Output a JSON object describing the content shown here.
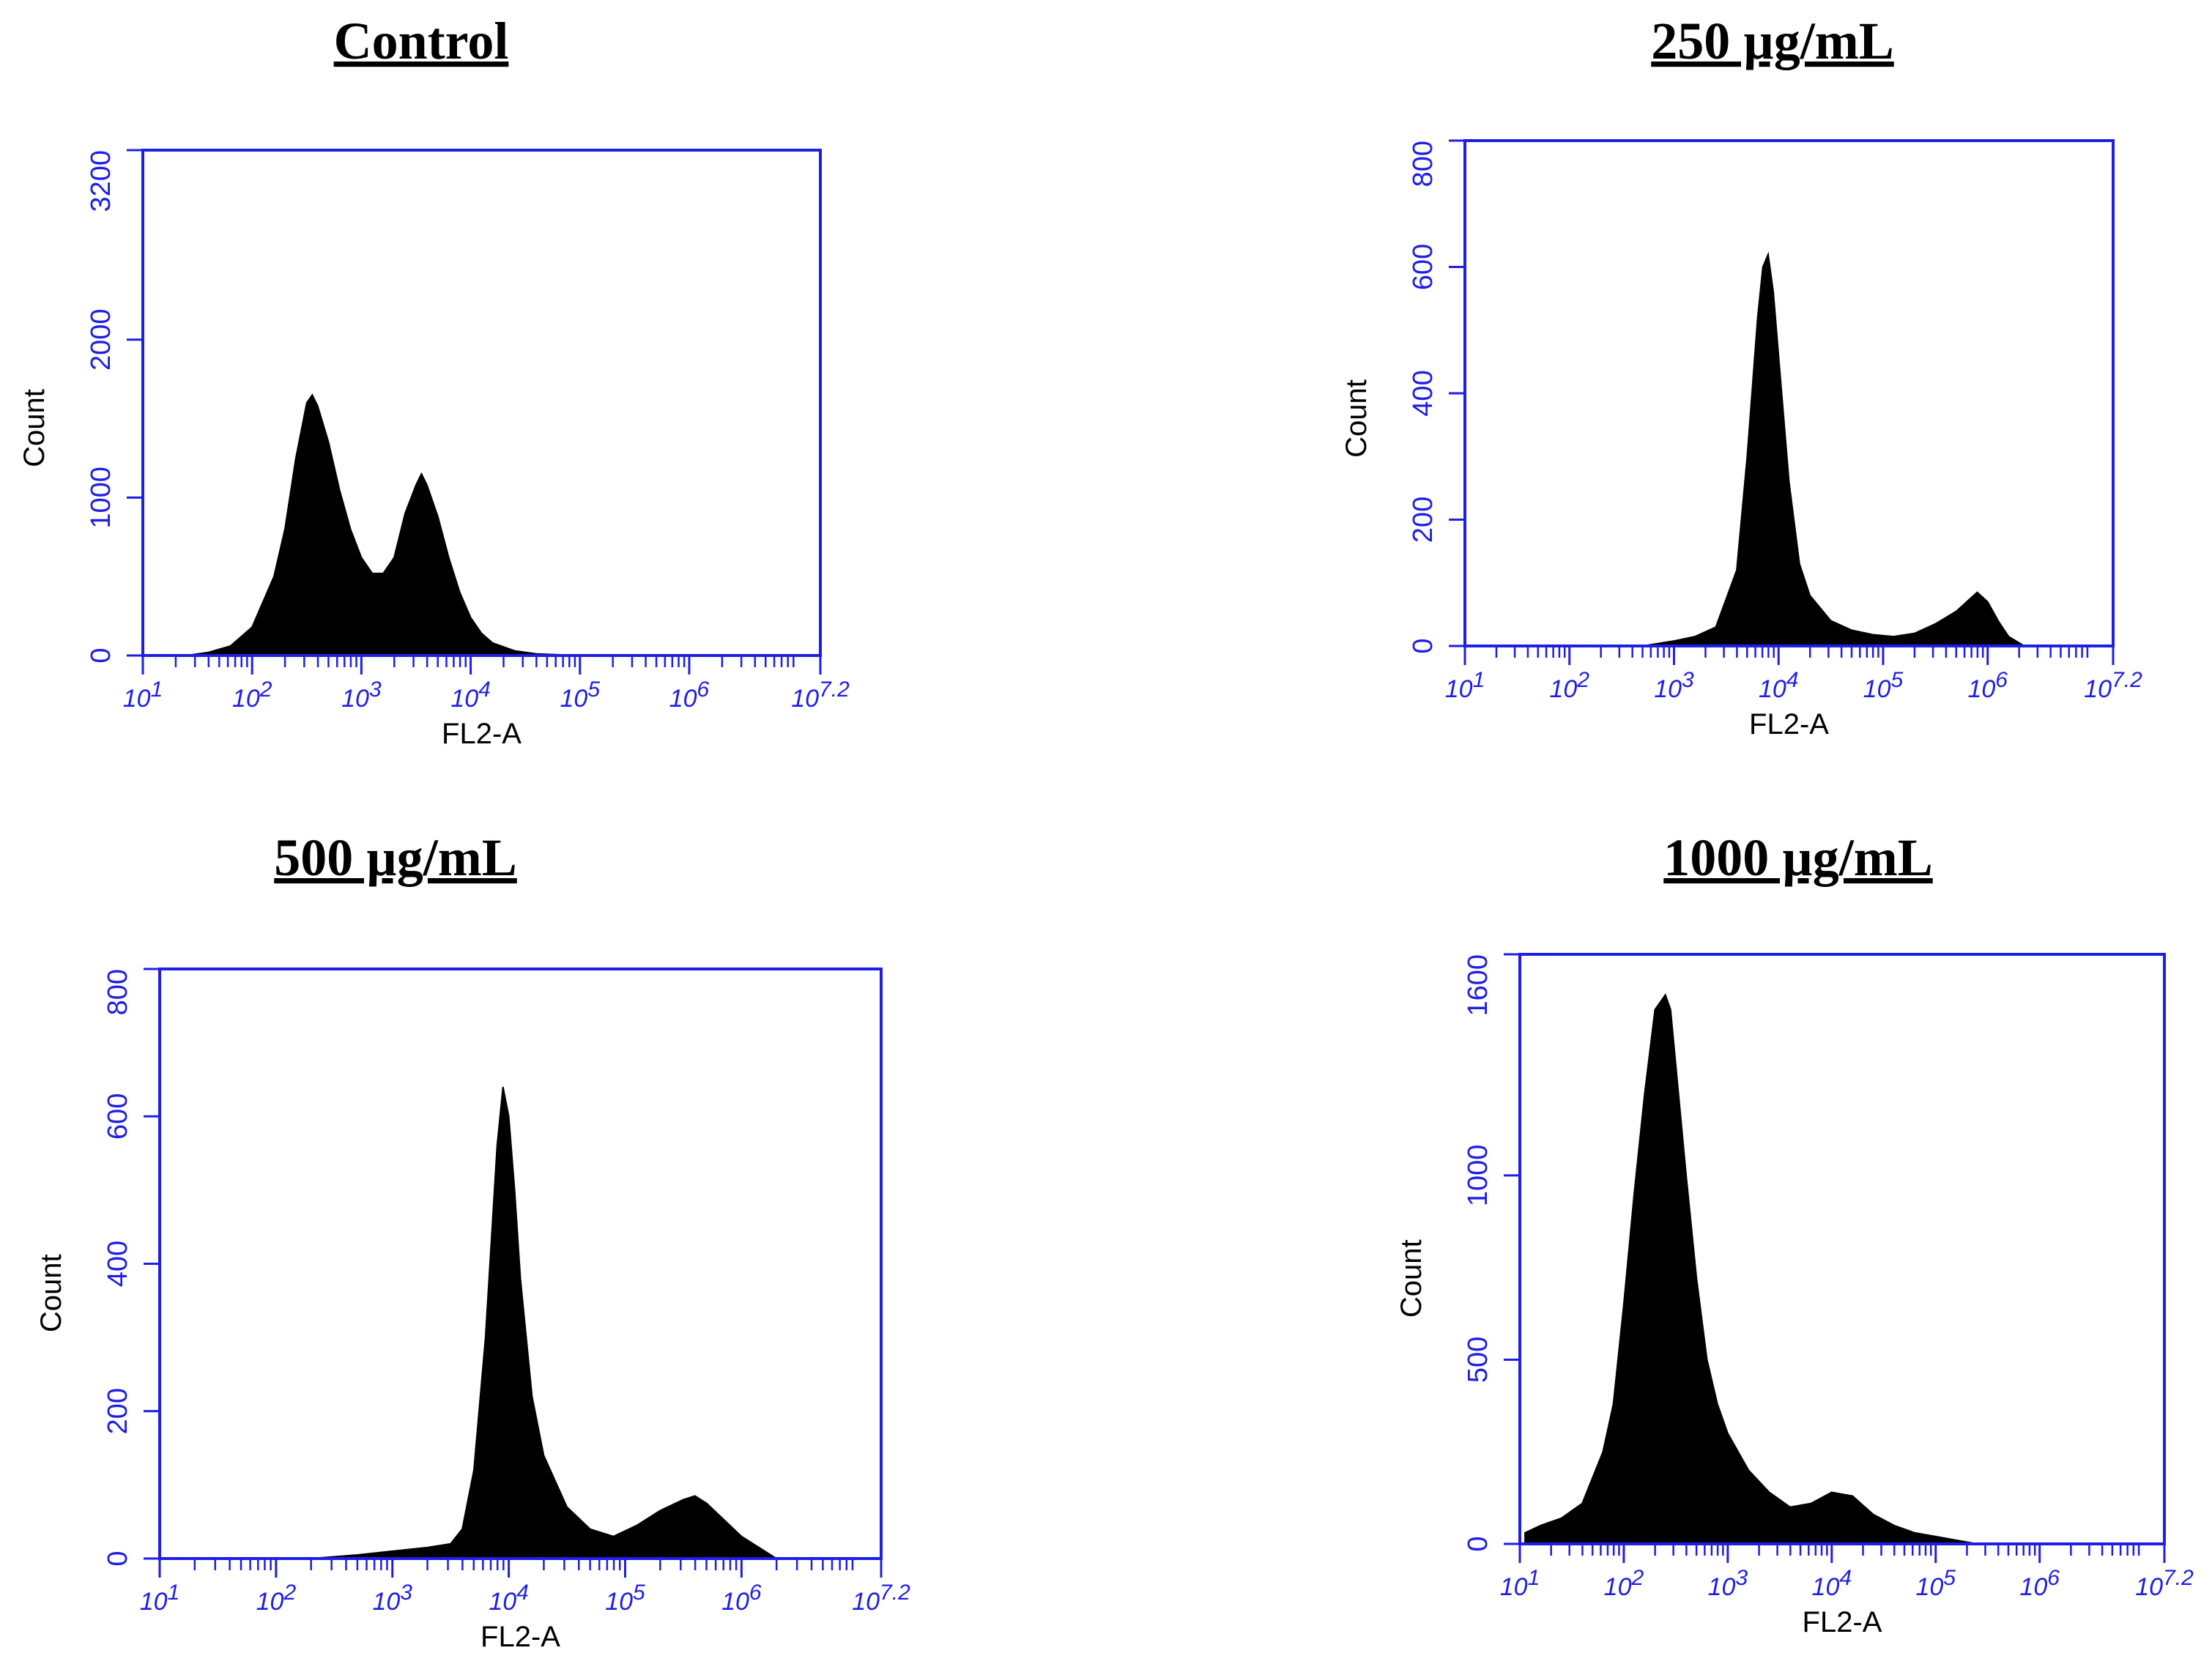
{
  "figure": {
    "description_text": ""
  },
  "colors": {
    "axis": "#1e1ee6",
    "histogram_fill": "#000000",
    "text": "#000000"
  },
  "chart_data": [
    {
      "type": "area",
      "title": "Control",
      "xlabel": "FL2-A",
      "ylabel": "Count",
      "x_scale": "log10",
      "xlim": [
        1,
        7.2
      ],
      "ylim": [
        0,
        3200
      ],
      "y_ticks": [
        "0",
        "1000",
        "2000",
        "3200"
      ],
      "x_ticks": [
        "10^1",
        "10^2",
        "10^3",
        "10^4",
        "10^5",
        "10^6",
        "10^7.2"
      ],
      "series": [
        {
          "name": "Control",
          "x": [
            1.4,
            1.6,
            1.8,
            2.0,
            2.2,
            2.3,
            2.4,
            2.5,
            2.55,
            2.6,
            2.7,
            2.8,
            2.9,
            3.0,
            3.1,
            3.2,
            3.3,
            3.4,
            3.5,
            3.55,
            3.6,
            3.7,
            3.8,
            3.9,
            4.0,
            4.1,
            4.2,
            4.4,
            4.6,
            4.8,
            5.0,
            5.2
          ],
          "values": [
            0,
            20,
            60,
            180,
            500,
            800,
            1250,
            1600,
            1650,
            1580,
            1350,
            1050,
            800,
            620,
            520,
            520,
            620,
            900,
            1080,
            1150,
            1080,
            880,
            620,
            400,
            240,
            140,
            80,
            30,
            10,
            5,
            0,
            0
          ]
        }
      ]
    },
    {
      "type": "area",
      "title": "250 µg/mL",
      "xlabel": "FL2-A",
      "ylabel": "Count",
      "x_scale": "log10",
      "xlim": [
        1,
        7.2
      ],
      "ylim": [
        0,
        800
      ],
      "y_ticks": [
        "0",
        "200",
        "400",
        "600",
        "800"
      ],
      "x_ticks": [
        "10^1",
        "10^2",
        "10^3",
        "10^4",
        "10^5",
        "10^6",
        "10^7.2"
      ],
      "series": [
        {
          "name": "250 µg/mL",
          "x": [
            2.7,
            3.0,
            3.2,
            3.4,
            3.6,
            3.7,
            3.8,
            3.85,
            3.9,
            3.95,
            4.0,
            4.1,
            4.2,
            4.3,
            4.5,
            4.7,
            4.9,
            5.1,
            5.3,
            5.5,
            5.7,
            5.8,
            5.9,
            6.0,
            6.1,
            6.2,
            6.35
          ],
          "values": [
            0,
            8,
            15,
            30,
            120,
            300,
            520,
            600,
            620,
            560,
            460,
            260,
            130,
            80,
            40,
            25,
            18,
            15,
            20,
            35,
            55,
            70,
            85,
            70,
            40,
            15,
            0
          ]
        }
      ]
    },
    {
      "type": "area",
      "title": "500 µg/mL",
      "xlabel": "FL2-A",
      "ylabel": "Count",
      "x_scale": "log10",
      "xlim": [
        1,
        7.2
      ],
      "ylim": [
        0,
        800
      ],
      "y_ticks": [
        "0",
        "200",
        "400",
        "600",
        "800"
      ],
      "x_ticks": [
        "10^1",
        "10^2",
        "10^3",
        "10^4",
        "10^5",
        "10^6",
        "10^7.2"
      ],
      "series": [
        {
          "name": "500 µg/mL",
          "x": [
            2.3,
            2.7,
            3.0,
            3.3,
            3.5,
            3.6,
            3.7,
            3.8,
            3.9,
            3.95,
            4.0,
            4.05,
            4.1,
            4.2,
            4.3,
            4.5,
            4.7,
            4.9,
            5.1,
            5.3,
            5.5,
            5.6,
            5.7,
            5.8,
            5.9,
            6.0,
            6.1,
            6.2,
            6.3
          ],
          "values": [
            0,
            5,
            10,
            15,
            20,
            40,
            120,
            300,
            560,
            640,
            600,
            500,
            380,
            220,
            140,
            70,
            40,
            30,
            45,
            65,
            80,
            85,
            75,
            60,
            45,
            30,
            20,
            10,
            0
          ]
        }
      ]
    },
    {
      "type": "area",
      "title": "1000 µg/mL",
      "xlabel": "FL2-A",
      "ylabel": "Count",
      "x_scale": "log10",
      "xlim": [
        1,
        7.2
      ],
      "ylim": [
        0,
        1600
      ],
      "y_ticks": [
        "0",
        "500",
        "1000",
        "1600"
      ],
      "x_ticks": [
        "10^1",
        "10^2",
        "10^3",
        "10^4",
        "10^5",
        "10^6",
        "10^7.2"
      ],
      "series": [
        {
          "name": "1000 µg/mL",
          "x": [
            1.05,
            1.2,
            1.4,
            1.6,
            1.8,
            1.9,
            2.0,
            2.1,
            2.2,
            2.3,
            2.4,
            2.45,
            2.5,
            2.6,
            2.7,
            2.8,
            2.9,
            3.0,
            3.2,
            3.4,
            3.6,
            3.8,
            4.0,
            4.2,
            4.4,
            4.6,
            4.8,
            5.0,
            5.2,
            5.4
          ],
          "values": [
            30,
            50,
            70,
            110,
            250,
            380,
            650,
            950,
            1220,
            1450,
            1490,
            1450,
            1300,
            1000,
            720,
            500,
            380,
            300,
            200,
            140,
            100,
            110,
            140,
            130,
            80,
            50,
            30,
            20,
            10,
            0
          ]
        }
      ]
    }
  ]
}
